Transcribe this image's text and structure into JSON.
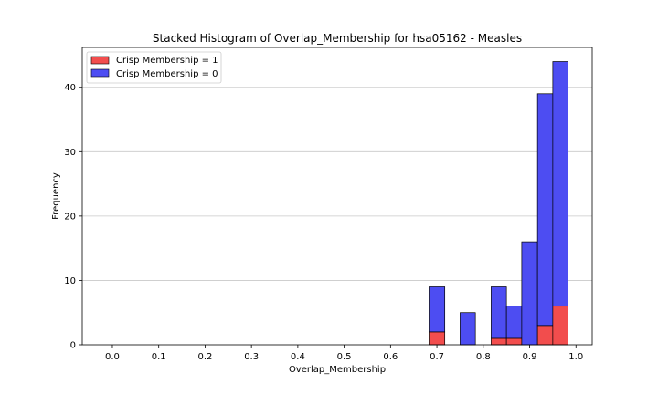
{
  "chart_data": {
    "type": "bar",
    "stacked": true,
    "title": "Stacked Histogram of Overlap_Membership for hsa05162 - Measles",
    "xlabel": "Overlap_Membership",
    "ylabel": "Frequency",
    "xlim": [
      -0.065,
      1.035
    ],
    "ylim": [
      0,
      46.2
    ],
    "x_ticks": [
      "0.0",
      "0.1",
      "0.2",
      "0.3",
      "0.4",
      "0.5",
      "0.6",
      "0.7",
      "0.8",
      "0.9",
      "1.0"
    ],
    "y_ticks": [
      "0",
      "10",
      "20",
      "30",
      "40"
    ],
    "grid": "horizontal",
    "legend_position": "top-left",
    "bins": [
      {
        "x0": 0.683,
        "x1": 0.717
      },
      {
        "x0": 0.75,
        "x1": 0.783
      },
      {
        "x0": 0.817,
        "x1": 0.85
      },
      {
        "x0": 0.85,
        "x1": 0.883
      },
      {
        "x0": 0.883,
        "x1": 0.917
      },
      {
        "x0": 0.917,
        "x1": 0.95
      },
      {
        "x0": 0.95,
        "x1": 0.983
      }
    ],
    "series": [
      {
        "name": "Crisp Membership = 1",
        "color": "#f24d4d",
        "values": [
          2,
          0,
          1,
          1,
          0,
          3,
          6
        ]
      },
      {
        "name": "Crisp Membership = 0",
        "color": "#4d4df2",
        "values": [
          7,
          5,
          8,
          5,
          16,
          36,
          38
        ]
      }
    ]
  }
}
